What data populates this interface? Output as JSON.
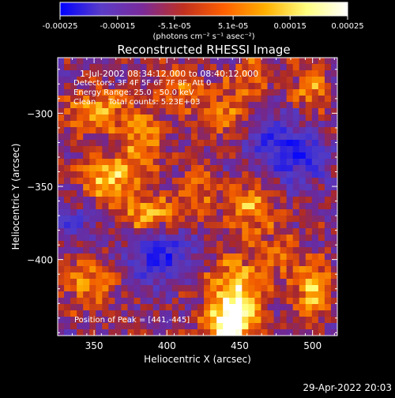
{
  "colorbar": {
    "tick_labels": [
      "-0.00025",
      "-0.00015",
      "-5.1e-05",
      "5.1e-05",
      "0.00015",
      "0.00025"
    ],
    "tick_values": [
      -0.00025,
      -0.00015,
      -5.1e-05,
      5.1e-05,
      0.00015,
      0.00025
    ],
    "range": [
      -0.00025,
      0.00025
    ],
    "unit_label": "(photons cm⁻² s⁻¹ asec⁻²)",
    "colors": [
      "#0000ff",
      "#5a3cc8",
      "#7a2a9a",
      "#c03020",
      "#ff6000",
      "#ffb000",
      "#ffff80",
      "#ffffff"
    ]
  },
  "annotations": {
    "time_range": "1-Jul-2002 08:34:12.000 to 08:40:12.000",
    "detectors": "Detectors: 3F 4F 5F 6F 7F 8F, Att 0",
    "energy_range": "Energy Range: 25.0 - 50.0 keV",
    "method": "Clean     Total counts: 5.23E+03",
    "peak": "Position of Peak = [441,-445]"
  },
  "footer": {
    "timestamp": "29-Apr-2022 20:03"
  },
  "chart_data": {
    "type": "heatmap",
    "title": "Reconstructed RHESSI Image",
    "xlabel": "Heliocentric X (arcsec)",
    "ylabel": "Heliocentric Y (arcsec)",
    "xlim": [
      325,
      517
    ],
    "ylim": [
      -452,
      -262
    ],
    "x_ticks": [
      350,
      400,
      450,
      500
    ],
    "x_tick_labels": [
      "350",
      "400",
      "450",
      "500"
    ],
    "y_ticks": [
      -300,
      -350,
      -400
    ],
    "y_tick_labels": [
      "−300",
      "−350",
      "−400"
    ],
    "peak_position": [
      441,
      -445
    ],
    "total_counts": 5230,
    "energy_range_kev": [
      25.0,
      50.0
    ],
    "colorscale": "blue-purple-red-yellow-white",
    "blobs": [
      {
        "x": 448,
        "y": -425,
        "amp": 1.0,
        "sx": 14,
        "sy": 18
      },
      {
        "x": 441,
        "y": -445,
        "amp": 0.95,
        "sx": 10,
        "sy": 8
      },
      {
        "x": 360,
        "y": -345,
        "amp": 0.85,
        "sx": 14,
        "sy": 12
      },
      {
        "x": 388,
        "y": -370,
        "amp": 0.8,
        "sx": 14,
        "sy": 10
      },
      {
        "x": 352,
        "y": -298,
        "amp": 0.75,
        "sx": 16,
        "sy": 10
      },
      {
        "x": 383,
        "y": -318,
        "amp": 0.7,
        "sx": 10,
        "sy": 12
      },
      {
        "x": 458,
        "y": -365,
        "amp": 0.7,
        "sx": 12,
        "sy": 12
      },
      {
        "x": 500,
        "y": -420,
        "amp": 0.75,
        "sx": 10,
        "sy": 14
      },
      {
        "x": 500,
        "y": -282,
        "amp": 0.7,
        "sx": 8,
        "sy": 10
      },
      {
        "x": 440,
        "y": -300,
        "amp": 0.5,
        "sx": 18,
        "sy": 14
      },
      {
        "x": 420,
        "y": -355,
        "amp": 0.45,
        "sx": 10,
        "sy": 14
      },
      {
        "x": 345,
        "y": -415,
        "amp": 0.6,
        "sx": 14,
        "sy": 12
      },
      {
        "x": 478,
        "y": -395,
        "amp": 0.45,
        "sx": 10,
        "sy": 10
      },
      {
        "x": 405,
        "y": -280,
        "amp": 0.5,
        "sx": 12,
        "sy": 8
      },
      {
        "x": 460,
        "y": -272,
        "amp": 0.45,
        "sx": 10,
        "sy": 8
      },
      {
        "x": 395,
        "y": -395,
        "amp": -0.75,
        "sx": 16,
        "sy": 14
      },
      {
        "x": 488,
        "y": -330,
        "amp": -0.7,
        "sx": 16,
        "sy": 12
      },
      {
        "x": 470,
        "y": -312,
        "amp": -0.55,
        "sx": 12,
        "sy": 10
      },
      {
        "x": 335,
        "y": -375,
        "amp": -0.45,
        "sx": 10,
        "sy": 10
      }
    ]
  }
}
